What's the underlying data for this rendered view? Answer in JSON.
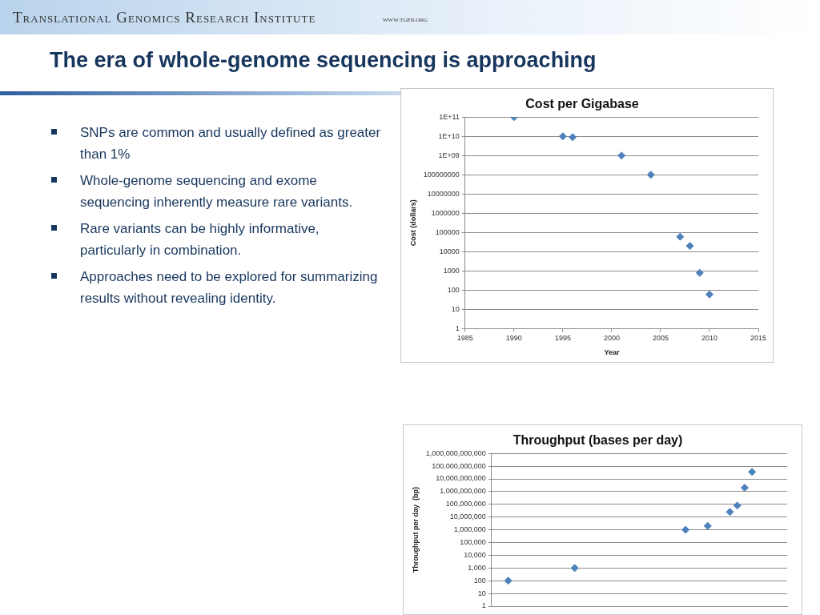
{
  "chart_data": [
    {
      "type": "other",
      "title": "The era of whole-genome sequencing is approaching",
      "annotations": [
        "Translational Genomics Research Institute",
        "WWW.TGEN.ORG",
        "SNPs are common and usually defined as greater than 1%",
        "Whole-genome sequencing and exome sequencing inherently measure rare variants.",
        "Rare variants can be highly informative, particularly in combination.",
        "Approaches need to be explored for summarizing results without revealing identity."
      ]
    },
    {
      "type": "scatter",
      "title": "Cost per Gigabase",
      "xlabel": "Year",
      "ylabel": "Cost (dollars)",
      "log": "y",
      "grid": "y",
      "legend": false,
      "marker": "diamond",
      "x": [
        1990,
        1995,
        1996,
        2001,
        2004,
        2007,
        2008,
        2009,
        2010
      ],
      "series": [
        {
          "color": "#4f81bd",
          "values": [
            100000000000,
            10000000000,
            9000000000,
            1000000000,
            100000000,
            60000,
            20000,
            800,
            60
          ]
        }
      ],
      "xlim": [
        1985,
        2015
      ],
      "xticks": [
        1985,
        1990,
        1995,
        2000,
        2005,
        2010,
        2015
      ],
      "ylim": [
        1,
        100000000000
      ],
      "yticks": [
        1,
        10,
        100,
        1000,
        10000,
        100000,
        1000000,
        10000000,
        100000000,
        {
          "value": 1000000000,
          "label": "1E+09"
        },
        {
          "value": 10000000000,
          "label": "1E+10"
        },
        {
          "value": 100000000000,
          "label": "1E+11"
        }
      ]
    },
    {
      "type": "scatter",
      "title": "Throughput (bases per day)",
      "ylabel": "Throughput per day  (bp)",
      "log": "y",
      "grid": "y",
      "legend": false,
      "marker": "diamond",
      "tick_labels": "y",
      "categories": [
        null,
        null,
        null,
        null,
        null,
        null,
        null,
        null,
        null,
        null,
        null,
        null,
        null,
        null,
        null,
        null,
        null,
        null,
        null,
        null,
        null,
        null,
        null,
        null,
        null,
        null,
        null,
        null,
        null,
        null,
        null,
        null,
        null,
        null,
        null,
        null,
        null,
        null,
        null,
        null,
        null,
        null,
        null,
        null,
        null,
        null,
        null,
        null,
        null,
        null,
        null,
        null,
        null,
        null,
        null,
        null,
        null,
        null,
        null,
        null,
        null,
        null,
        null,
        null,
        null,
        null,
        null,
        null,
        null,
        null,
        null,
        null,
        null,
        null,
        null,
        null,
        null,
        null,
        null,
        null
      ],
      "series": [
        {
          "color": "#4f81bd",
          "values": [
            null,
            null,
            null,
            null,
            100,
            null,
            null,
            null,
            null,
            null,
            null,
            null,
            null,
            null,
            null,
            null,
            null,
            null,
            null,
            null,
            null,
            null,
            1000,
            null,
            null,
            null,
            null,
            null,
            null,
            null,
            null,
            null,
            null,
            null,
            null,
            null,
            null,
            null,
            null,
            null,
            null,
            null,
            null,
            null,
            null,
            null,
            null,
            null,
            null,
            null,
            null,
            null,
            1000000,
            null,
            null,
            null,
            null,
            null,
            2000000,
            null,
            null,
            null,
            null,
            null,
            25000000,
            null,
            80000000,
            null,
            2000000000,
            null,
            35000000000,
            null,
            null,
            null,
            null,
            null,
            null,
            null,
            null,
            null
          ]
        }
      ],
      "ylim": [
        1,
        1000000000000
      ],
      "yticks": [
        1,
        10,
        100,
        {
          "value": 1000,
          "label": "1,000"
        },
        {
          "value": 10000,
          "label": "10,000"
        },
        {
          "value": 100000,
          "label": "100,000"
        },
        {
          "value": 1000000,
          "label": "1,000,000"
        },
        {
          "value": 10000000,
          "label": "10,000,000"
        },
        {
          "value": 100000000,
          "label": "100,000,000"
        },
        {
          "value": 1000000000,
          "label": "1,000,000,000"
        },
        {
          "value": 10000000000,
          "label": "10,000,000,000"
        },
        {
          "value": 100000000000,
          "label": "100,000,000,000"
        },
        {
          "value": 1000000000000,
          "label": "1,000,000,000,000"
        }
      ]
    }
  ]
}
